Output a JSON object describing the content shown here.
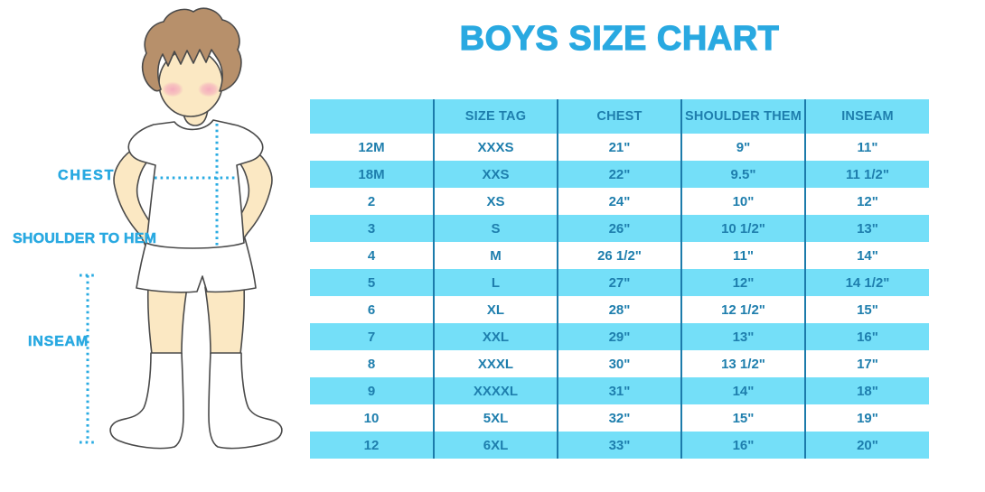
{
  "title": "BOYS SIZE CHART",
  "figure": {
    "labels": {
      "chest": "CHEST",
      "shoulder_to_hem": "SHOULDER TO HEM",
      "inseam": "INSEAM"
    }
  },
  "chart_data": {
    "type": "table",
    "title": "BOYS SIZE CHART",
    "columns": [
      "",
      "SIZE TAG",
      "CHEST",
      "SHOULDER THEM",
      "INSEAM"
    ],
    "rows": [
      [
        "12M",
        "XXXS",
        "21\"",
        "9\"",
        "11\""
      ],
      [
        "18M",
        "XXS",
        "22\"",
        "9.5\"",
        "11 1/2\""
      ],
      [
        "2",
        "XS",
        "24\"",
        "10\"",
        "12\""
      ],
      [
        "3",
        "S",
        "26\"",
        "10 1/2\"",
        "13\""
      ],
      [
        "4",
        "M",
        "26 1/2\"",
        "11\"",
        "14\""
      ],
      [
        "5",
        "L",
        "27\"",
        "12\"",
        "14 1/2\""
      ],
      [
        "6",
        "XL",
        "28\"",
        "12 1/2\"",
        "15\""
      ],
      [
        "7",
        "XXL",
        "29\"",
        "13\"",
        "16\""
      ],
      [
        "8",
        "XXXL",
        "30\"",
        "13 1/2\"",
        "17\""
      ],
      [
        "9",
        "XXXXL",
        "31\"",
        "14\"",
        "18\""
      ],
      [
        "10",
        "5XL",
        "32\"",
        "15\"",
        "19\""
      ],
      [
        "12",
        "6XL",
        "33\"",
        "16\"",
        "20\""
      ]
    ],
    "row_striping": "header and every second row light blue, others white",
    "grid": "vertical column dividers only, no outer border",
    "legend_position": "none"
  },
  "colors": {
    "title_blue": "#29A9E1",
    "row_blue": "#74DFF8",
    "table_text_blue": "#1E7EAD",
    "divider_blue": "#1C7BAB",
    "label_blue": "#29A9E1",
    "dotted_line_blue": "#29ABE2",
    "skin": "#FBE8C3",
    "hair_brown": "#B7906B",
    "cheek_pink": "#F4A9BC",
    "outline_gray": "#4A4A4A",
    "background": "#FFFFFF"
  }
}
